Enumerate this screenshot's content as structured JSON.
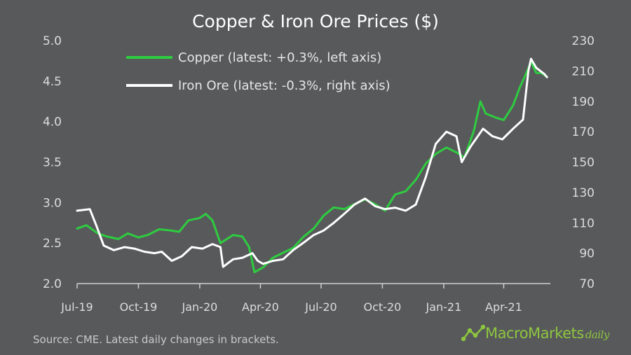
{
  "chart_data": {
    "type": "line",
    "title": "Copper & Iron Ore Prices ($)",
    "x_ticks": [
      "Jul-19",
      "Oct-19",
      "Jan-20",
      "Apr-20",
      "Jul-20",
      "Oct-20",
      "Jan-21",
      "Apr-21"
    ],
    "x_range": [
      "2019-07-01",
      "2021-06-10"
    ],
    "y_left": {
      "ticks": [
        "2.0",
        "2.5",
        "3.0",
        "3.5",
        "4.0",
        "4.5",
        "5.0"
      ],
      "range": [
        2.0,
        5.0
      ]
    },
    "y_right": {
      "ticks": [
        "70",
        "90",
        "110",
        "130",
        "150",
        "170",
        "190",
        "210",
        "230"
      ],
      "range": [
        70,
        230
      ]
    },
    "grid": false,
    "legend_position": "top-left",
    "series": [
      {
        "name": "Copper (latest: +0.3%, left axis)",
        "axis": "left",
        "color": "#2ecc40",
        "points": [
          [
            "2019-07-01",
            2.68
          ],
          [
            "2019-07-15",
            2.72
          ],
          [
            "2019-08-01",
            2.62
          ],
          [
            "2019-08-15",
            2.58
          ],
          [
            "2019-09-01",
            2.55
          ],
          [
            "2019-09-15",
            2.62
          ],
          [
            "2019-10-01",
            2.57
          ],
          [
            "2019-10-15",
            2.6
          ],
          [
            "2019-11-01",
            2.67
          ],
          [
            "2019-11-15",
            2.66
          ],
          [
            "2019-12-01",
            2.64
          ],
          [
            "2019-12-15",
            2.78
          ],
          [
            "2020-01-01",
            2.81
          ],
          [
            "2020-01-10",
            2.86
          ],
          [
            "2020-01-20",
            2.78
          ],
          [
            "2020-02-01",
            2.5
          ],
          [
            "2020-02-20",
            2.6
          ],
          [
            "2020-03-05",
            2.58
          ],
          [
            "2020-03-15",
            2.45
          ],
          [
            "2020-03-23",
            2.14
          ],
          [
            "2020-04-05",
            2.2
          ],
          [
            "2020-04-20",
            2.32
          ],
          [
            "2020-05-05",
            2.38
          ],
          [
            "2020-05-20",
            2.44
          ],
          [
            "2020-06-05",
            2.58
          ],
          [
            "2020-06-20",
            2.68
          ],
          [
            "2020-07-05",
            2.84
          ],
          [
            "2020-07-20",
            2.94
          ],
          [
            "2020-08-05",
            2.92
          ],
          [
            "2020-08-20",
            2.98
          ],
          [
            "2020-09-05",
            3.04
          ],
          [
            "2020-09-20",
            2.98
          ],
          [
            "2020-10-05",
            2.9
          ],
          [
            "2020-10-20",
            3.1
          ],
          [
            "2020-11-05",
            3.14
          ],
          [
            "2020-11-20",
            3.28
          ],
          [
            "2020-12-05",
            3.48
          ],
          [
            "2020-12-20",
            3.6
          ],
          [
            "2021-01-05",
            3.68
          ],
          [
            "2021-01-20",
            3.62
          ],
          [
            "2021-02-01",
            3.56
          ],
          [
            "2021-02-15",
            3.88
          ],
          [
            "2021-02-25",
            4.25
          ],
          [
            "2021-03-05",
            4.1
          ],
          [
            "2021-03-20",
            4.05
          ],
          [
            "2021-04-01",
            4.02
          ],
          [
            "2021-04-15",
            4.2
          ],
          [
            "2021-04-25",
            4.42
          ],
          [
            "2021-05-05",
            4.6
          ],
          [
            "2021-05-12",
            4.74
          ],
          [
            "2021-05-20",
            4.6
          ],
          [
            "2021-05-28",
            4.6
          ],
          [
            "2021-06-05",
            4.55
          ]
        ]
      },
      {
        "name": "Iron Ore (latest: -0.3%, right axis)",
        "axis": "right",
        "color": "#ffffff",
        "points": [
          [
            "2019-07-01",
            118
          ],
          [
            "2019-07-20",
            119
          ],
          [
            "2019-07-30",
            108
          ],
          [
            "2019-08-10",
            95
          ],
          [
            "2019-08-25",
            92
          ],
          [
            "2019-09-10",
            94
          ],
          [
            "2019-09-25",
            93
          ],
          [
            "2019-10-10",
            91
          ],
          [
            "2019-10-25",
            90
          ],
          [
            "2019-11-05",
            91
          ],
          [
            "2019-11-20",
            85
          ],
          [
            "2019-12-05",
            88
          ],
          [
            "2019-12-20",
            94
          ],
          [
            "2020-01-05",
            93
          ],
          [
            "2020-01-20",
            96
          ],
          [
            "2020-02-01",
            94
          ],
          [
            "2020-02-05",
            81
          ],
          [
            "2020-02-20",
            86
          ],
          [
            "2020-03-05",
            87
          ],
          [
            "2020-03-20",
            90
          ],
          [
            "2020-03-28",
            85
          ],
          [
            "2020-04-05",
            83
          ],
          [
            "2020-04-20",
            85
          ],
          [
            "2020-05-05",
            86
          ],
          [
            "2020-05-20",
            92
          ],
          [
            "2020-06-05",
            97
          ],
          [
            "2020-06-20",
            102
          ],
          [
            "2020-07-05",
            105
          ],
          [
            "2020-07-20",
            110
          ],
          [
            "2020-08-05",
            116
          ],
          [
            "2020-08-20",
            122
          ],
          [
            "2020-09-05",
            126
          ],
          [
            "2020-09-20",
            121
          ],
          [
            "2020-10-05",
            119
          ],
          [
            "2020-10-20",
            120
          ],
          [
            "2020-11-05",
            118
          ],
          [
            "2020-11-20",
            122
          ],
          [
            "2020-12-05",
            140
          ],
          [
            "2020-12-20",
            162
          ],
          [
            "2021-01-05",
            170
          ],
          [
            "2021-01-20",
            167
          ],
          [
            "2021-01-28",
            150
          ],
          [
            "2021-02-10",
            160
          ],
          [
            "2021-03-01",
            172
          ],
          [
            "2021-03-15",
            167
          ],
          [
            "2021-03-30",
            165
          ],
          [
            "2021-04-15",
            172
          ],
          [
            "2021-04-30",
            178
          ],
          [
            "2021-05-08",
            210
          ],
          [
            "2021-05-12",
            218
          ],
          [
            "2021-05-20",
            212
          ],
          [
            "2021-06-01",
            208
          ],
          [
            "2021-06-05",
            206
          ]
        ]
      }
    ]
  },
  "footer": {
    "source": "Source: CME. Latest daily changes in brackets.",
    "logo_main": "MacroMarkets",
    "logo_suffix": "daily"
  },
  "colors": {
    "background": "#58595b",
    "copper": "#2ecc40",
    "iron_ore": "#ffffff",
    "brand": "#8dc63f"
  }
}
